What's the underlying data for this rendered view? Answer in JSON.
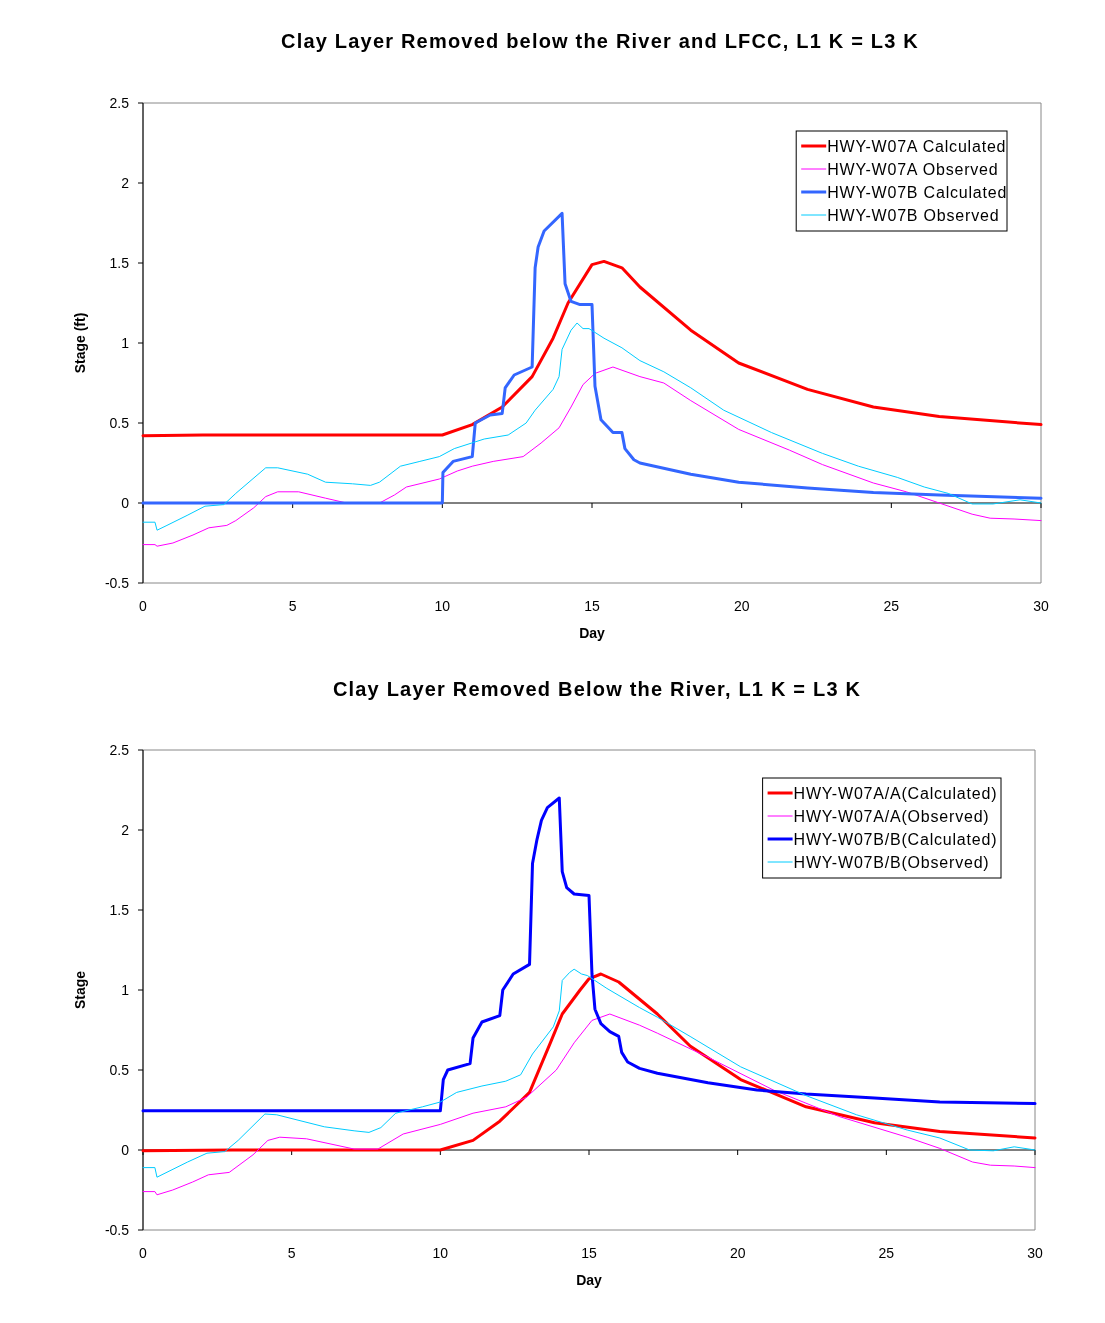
{
  "chart_data": [
    {
      "type": "line",
      "title": "Clay Layer Removed below the River and LFCC, L1 K = L3 K",
      "xlabel": "Day",
      "ylabel": "Stage (ft)",
      "xlim": [
        0,
        30
      ],
      "xticks": [
        0,
        5,
        10,
        15,
        20,
        25,
        30
      ],
      "ylim": [
        -0.5,
        2.5
      ],
      "yticks": [
        -0.5,
        0,
        0.5,
        1,
        1.5,
        2,
        2.5
      ],
      "legend": "top right",
      "marker": "none",
      "line_style": "solid",
      "series": [
        {
          "name": "HWY-W07A Calculated",
          "color": "#ff0000",
          "x": [
            0,
            2,
            5,
            8,
            10,
            11,
            12,
            13,
            13.7,
            14.2,
            15,
            15.4,
            16,
            16.6,
            18.3,
            19.9,
            22.2,
            24.4,
            26.6,
            30
          ],
          "values": [
            0.42,
            0.425,
            0.425,
            0.425,
            0.425,
            0.49,
            0.6,
            0.79,
            1.03,
            1.25,
            1.49,
            1.51,
            1.47,
            1.35,
            1.08,
            0.875,
            0.71,
            0.6,
            0.54,
            0.49
          ]
        },
        {
          "name": "HWY-W07A Observed",
          "color": "#ff00ff",
          "x": [
            0,
            0.4,
            0.47,
            1,
            1.67,
            2.2,
            2.8,
            3.1,
            3.7,
            4.1,
            4.5,
            5.2,
            6.1,
            6.8,
            7.9,
            8.4,
            8.8,
            9.9,
            10.5,
            11,
            11.7,
            12.7,
            13.3,
            13.9,
            14.3,
            14.7,
            15.1,
            15.7,
            16.6,
            17.4,
            18.3,
            19.9,
            21.6,
            22.7,
            24.4,
            25.5,
            26.6,
            27.7,
            28.3,
            29.1,
            30
          ],
          "values": [
            -0.26,
            -0.26,
            -0.27,
            -0.25,
            -0.2,
            -0.155,
            -0.14,
            -0.11,
            -0.03,
            0.04,
            0.07,
            0.07,
            0.03,
            0,
            0,
            0.05,
            0.1,
            0.15,
            0.2,
            0.23,
            0.26,
            0.29,
            0.375,
            0.47,
            0.6,
            0.74,
            0.81,
            0.85,
            0.79,
            0.75,
            0.64,
            0.46,
            0.33,
            0.24,
            0.125,
            0.07,
            0,
            -0.07,
            -0.095,
            -0.1,
            -0.11
          ]
        },
        {
          "name": "HWY-W07B Calculated",
          "color": "#3366ff",
          "x": [
            0,
            10,
            10.02,
            10.36,
            11,
            11.1,
            11.6,
            12,
            12.1,
            12.4,
            13,
            13.1,
            13.2,
            13.4,
            14,
            14.1,
            14.3,
            14.6,
            15,
            15.1,
            15.3,
            15.7,
            16,
            16.1,
            16.4,
            16.6,
            18.3,
            19.9,
            22.2,
            24.4,
            26.6,
            30
          ],
          "values": [
            0,
            0,
            0.19,
            0.26,
            0.29,
            0.5,
            0.55,
            0.56,
            0.72,
            0.8,
            0.85,
            1.47,
            1.6,
            1.7,
            1.81,
            1.37,
            1.26,
            1.24,
            1.24,
            0.73,
            0.52,
            0.44,
            0.44,
            0.34,
            0.27,
            0.25,
            0.18,
            0.13,
            0.094,
            0.065,
            0.05,
            0.03
          ]
        },
        {
          "name": "HWY-W07B Observed",
          "color": "#00ccff",
          "x": [
            0,
            0.4,
            0.47,
            0.8,
            1.5,
            2.07,
            2.7,
            3.1,
            4.1,
            4.5,
            5.5,
            6.1,
            7,
            7.6,
            7.9,
            8.6,
            9.25,
            9.9,
            10.4,
            11.4,
            12.2,
            12.8,
            13.1,
            13.7,
            13.9,
            14,
            14.3,
            14.5,
            14.7,
            14.9,
            15.4,
            16,
            16.6,
            17.4,
            18.3,
            19.4,
            21,
            22.7,
            23.9,
            25.2,
            26.1,
            26.9,
            27.7,
            28.4,
            29.3,
            30
          ],
          "values": [
            -0.12,
            -0.12,
            -0.17,
            -0.14,
            -0.075,
            -0.02,
            -0.01,
            0.06,
            0.22,
            0.22,
            0.18,
            0.13,
            0.12,
            0.11,
            0.13,
            0.23,
            0.26,
            0.29,
            0.34,
            0.4,
            0.425,
            0.5,
            0.58,
            0.71,
            0.79,
            0.96,
            1.08,
            1.125,
            1.09,
            1.09,
            1.03,
            0.97,
            0.89,
            0.82,
            0.72,
            0.58,
            0.44,
            0.31,
            0.23,
            0.16,
            0.1,
            0.06,
            -0.006,
            -0.006,
            0.02,
            0
          ]
        }
      ]
    },
    {
      "type": "line",
      "title": "Clay Layer Removed Below the River, L1 K = L3 K",
      "xlabel": "Day",
      "ylabel": "Stage",
      "xlim": [
        0,
        30
      ],
      "xticks": [
        0,
        5,
        10,
        15,
        20,
        25,
        30
      ],
      "ylim": [
        -0.5,
        2.5
      ],
      "yticks": [
        -0.5,
        0,
        0.5,
        1,
        1.5,
        2,
        2.5
      ],
      "legend": "top right",
      "marker": "none",
      "line_style": "solid",
      "series": [
        {
          "name": "HWY-W07A/A(Calculated)",
          "color": "#ff0000",
          "x": [
            0,
            3,
            6,
            8,
            10,
            11.1,
            12,
            13,
            13.7,
            14.1,
            14.7,
            15,
            15.4,
            16,
            17.3,
            18.4,
            20.1,
            22.3,
            24.6,
            26.8,
            30
          ],
          "values": [
            -0.005,
            0,
            0,
            0,
            0,
            0.06,
            0.18,
            0.36,
            0.67,
            0.85,
            1,
            1.07,
            1.1,
            1.05,
            0.85,
            0.65,
            0.44,
            0.27,
            0.17,
            0.115,
            0.075
          ]
        },
        {
          "name": "HWY-W07A/A(Observed)",
          "color": "#ff00ff",
          "x": [
            0,
            0.4,
            0.47,
            1,
            1.67,
            2.2,
            2.9,
            3.7,
            4.2,
            4.6,
            5.5,
            7.1,
            7.9,
            8.75,
            10,
            11.1,
            12.2,
            12.9,
            13.9,
            14.5,
            15.1,
            15.7,
            16.7,
            17.3,
            19,
            21.2,
            23.4,
            25.7,
            26.8,
            27.9,
            28.5,
            29.3,
            30
          ],
          "values": [
            -0.26,
            -0.26,
            -0.28,
            -0.25,
            -0.2,
            -0.155,
            -0.14,
            -0.03,
            0.06,
            0.08,
            0.07,
            0.006,
            0.006,
            0.1,
            0.16,
            0.23,
            0.27,
            0.33,
            0.5,
            0.67,
            0.81,
            0.85,
            0.78,
            0.73,
            0.58,
            0.375,
            0.21,
            0.08,
            0.01,
            -0.075,
            -0.095,
            -0.1,
            -0.11
          ]
        },
        {
          "name": "HWY-W07B/B(Calculated)",
          "color": "#0000ff",
          "x": [
            0,
            10,
            10.1,
            10.25,
            11,
            11.1,
            11.4,
            12,
            12.1,
            12.45,
            13,
            13.1,
            13.25,
            13.4,
            13.6,
            14,
            14.1,
            14.25,
            14.5,
            15,
            15.1,
            15.2,
            15.4,
            15.7,
            16,
            16.1,
            16.3,
            16.7,
            17.3,
            19,
            20.65,
            22.3,
            24.6,
            26.8,
            30
          ],
          "values": [
            0.245,
            0.245,
            0.44,
            0.5,
            0.54,
            0.7,
            0.8,
            0.84,
            1,
            1.1,
            1.16,
            1.79,
            1.94,
            2.06,
            2.14,
            2.2,
            1.74,
            1.64,
            1.6,
            1.59,
            1.1,
            0.88,
            0.79,
            0.74,
            0.71,
            0.61,
            0.55,
            0.51,
            0.48,
            0.42,
            0.375,
            0.35,
            0.325,
            0.3,
            0.29
          ]
        },
        {
          "name": "HWY-W07B/B(Observed)",
          "color": "#00ccff",
          "x": [
            0,
            0.4,
            0.47,
            1.5,
            2.15,
            2.75,
            3.2,
            4.1,
            4.5,
            6.1,
            7.1,
            7.6,
            8,
            8.5,
            9.4,
            10,
            10.55,
            11.4,
            12.2,
            12.7,
            13.1,
            13.8,
            14,
            14.1,
            14.35,
            14.5,
            14.75,
            14.95,
            15.6,
            16.7,
            17.3,
            18.4,
            20.1,
            22.3,
            24,
            25.7,
            26.8,
            27.8,
            28.6,
            29.3,
            30
          ],
          "values": [
            -0.11,
            -0.11,
            -0.17,
            -0.075,
            -0.02,
            -0.01,
            0.06,
            0.225,
            0.22,
            0.145,
            0.12,
            0.11,
            0.14,
            0.23,
            0.27,
            0.3,
            0.36,
            0.4,
            0.43,
            0.47,
            0.6,
            0.77,
            0.87,
            1.06,
            1.11,
            1.13,
            1.1,
            1.09,
            1.01,
            0.89,
            0.83,
            0.71,
            0.52,
            0.34,
            0.22,
            0.125,
            0.075,
            0,
            -0.005,
            0.02,
            0
          ]
        }
      ]
    }
  ]
}
